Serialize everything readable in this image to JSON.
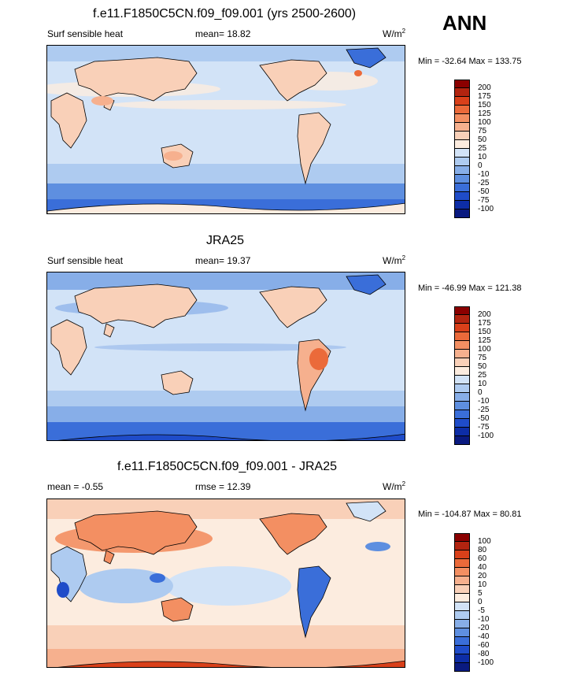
{
  "season": "ANN",
  "panels": [
    {
      "title": "f.e11.F1850C5CN.f09_f09.001 (yrs 2500-2600)",
      "left": "Surf sensible heat",
      "mid": "mean=  18.82",
      "units": "W/m",
      "units_sup": "2",
      "minmax": "Min = -32.64 Max = 133.75"
    },
    {
      "title": "JRA25",
      "left": "Surf sensible heat",
      "mid": "mean=  19.37",
      "units": "W/m",
      "units_sup": "2",
      "minmax": "Min = -46.99 Max = 121.38"
    },
    {
      "title": "f.e11.F1850C5CN.f09_f09.001 - JRA25",
      "left": "mean =  -0.55",
      "mid": "rmse =  12.39",
      "units": "W/m",
      "units_sup": "2",
      "minmax": "Min = -104.87 Max =  80.81"
    }
  ],
  "chart_data": [
    {
      "type": "heatmap",
      "title": "f.e11.F1850C5CN.f09_f09.001 (yrs 2500-2600)",
      "variable": "Surf sensible heat",
      "mean": 18.82,
      "units": "W/m2",
      "min": -32.64,
      "max": 133.75,
      "colorbar_levels": [
        "200",
        "175",
        "150",
        "125",
        "100",
        "75",
        "50",
        "25",
        "10",
        "0",
        "-10",
        "-25",
        "-50",
        "-75",
        "-100"
      ],
      "colorbar_colors": [
        "#8b0000",
        "#b22410",
        "#d9401a",
        "#eb6a3a",
        "#f38f62",
        "#f6b08e",
        "#f9d0b8",
        "#fcecdf",
        "#d2e3f7",
        "#aecbf0",
        "#87aee8",
        "#5e8fe0",
        "#3a6ed9",
        "#1f4cc9",
        "#0d2da6",
        "#0a1a80"
      ]
    },
    {
      "type": "heatmap",
      "title": "JRA25",
      "variable": "Surf sensible heat",
      "mean": 19.37,
      "units": "W/m2",
      "min": -46.99,
      "max": 121.38,
      "colorbar_levels": [
        "200",
        "175",
        "150",
        "125",
        "100",
        "75",
        "50",
        "25",
        "10",
        "0",
        "-10",
        "-25",
        "-50",
        "-75",
        "-100"
      ],
      "colorbar_colors": [
        "#8b0000",
        "#b22410",
        "#d9401a",
        "#eb6a3a",
        "#f38f62",
        "#f6b08e",
        "#f9d0b8",
        "#fcecdf",
        "#d2e3f7",
        "#aecbf0",
        "#87aee8",
        "#5e8fe0",
        "#3a6ed9",
        "#1f4cc9",
        "#0d2da6",
        "#0a1a80"
      ]
    },
    {
      "type": "heatmap",
      "title": "f.e11.F1850C5CN.f09_f09.001 - JRA25",
      "mean": -0.55,
      "rmse": 12.39,
      "units": "W/m2",
      "min": -104.87,
      "max": 80.81,
      "colorbar_levels": [
        "100",
        "80",
        "60",
        "40",
        "20",
        "10",
        "5",
        "0",
        "-5",
        "-10",
        "-20",
        "-40",
        "-60",
        "-80",
        "-100"
      ],
      "colorbar_colors": [
        "#8b0000",
        "#b22410",
        "#d9401a",
        "#eb6a3a",
        "#f38f62",
        "#f6b08e",
        "#f9d0b8",
        "#fcecdf",
        "#d2e3f7",
        "#aecbf0",
        "#87aee8",
        "#5e8fe0",
        "#3a6ed9",
        "#1f4cc9",
        "#0d2da6",
        "#0a1a80"
      ]
    }
  ]
}
